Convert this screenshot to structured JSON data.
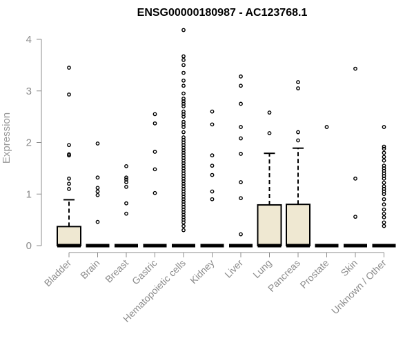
{
  "chart_data": {
    "type": "box",
    "title": "ENSG00000180987 - AC123768.1",
    "xlabel": "",
    "ylabel": "Expression",
    "ylim": [
      0,
      4.2
    ],
    "yticks": [
      "0",
      "1",
      "2",
      "3",
      "4"
    ],
    "box_fill": "#efe8d2",
    "categories": [
      "Bladder",
      "Brain",
      "Breast",
      "Gastric",
      "Hematopoietic cells",
      "Kidney",
      "Liver",
      "Lung",
      "Pancreas",
      "Prostate",
      "Skin",
      "Unknown / Other"
    ],
    "boxes": [
      {
        "category": "Bladder",
        "q1": 0,
        "median": 0,
        "q3": 0.37,
        "whisker_low": 0,
        "whisker_high": 0.89,
        "outliers": [
          1.1,
          1.2,
          1.3,
          1.75,
          1.77,
          1.95,
          2.93,
          3.45
        ]
      },
      {
        "category": "Brain",
        "q1": 0,
        "median": 0,
        "q3": 0,
        "whisker_low": 0,
        "whisker_high": 0,
        "outliers": [
          0.46,
          0.98,
          1.05,
          1.12,
          1.32,
          1.98
        ]
      },
      {
        "category": "Breast",
        "q1": 0,
        "median": 0,
        "q3": 0,
        "whisker_low": 0,
        "whisker_high": 0,
        "outliers": [
          0.62,
          0.82,
          1.14,
          1.23,
          1.28,
          1.32,
          1.54
        ]
      },
      {
        "category": "Gastric",
        "q1": 0,
        "median": 0,
        "q3": 0,
        "whisker_low": 0,
        "whisker_high": 0,
        "outliers": [
          1.02,
          1.48,
          1.82,
          2.37,
          2.55
        ]
      },
      {
        "category": "Hematopoietic cells",
        "q1": 0,
        "median": 0,
        "q3": 0,
        "whisker_low": 0,
        "whisker_high": 0,
        "outliers": [
          0.3,
          0.38,
          0.45,
          0.5,
          0.55,
          0.6,
          0.65,
          0.7,
          0.75,
          0.8,
          0.85,
          0.9,
          0.95,
          1.0,
          1.05,
          1.1,
          1.15,
          1.2,
          1.25,
          1.3,
          1.35,
          1.4,
          1.45,
          1.5,
          1.55,
          1.6,
          1.65,
          1.7,
          1.75,
          1.8,
          1.85,
          1.9,
          1.95,
          2.0,
          2.05,
          2.1,
          2.2,
          2.3,
          2.35,
          2.4,
          2.5,
          2.55,
          2.6,
          2.7,
          2.75,
          2.8,
          2.85,
          2.95,
          3.1,
          3.2,
          3.35,
          3.5,
          3.6,
          3.67,
          4.18
        ]
      },
      {
        "category": "Kidney",
        "q1": 0,
        "median": 0,
        "q3": 0,
        "whisker_low": 0,
        "whisker_high": 0,
        "outliers": [
          0.9,
          1.05,
          1.37,
          1.55,
          1.75,
          2.35,
          2.6
        ]
      },
      {
        "category": "Liver",
        "q1": 0,
        "median": 0,
        "q3": 0,
        "whisker_low": 0,
        "whisker_high": 0,
        "outliers": [
          0.22,
          0.92,
          1.23,
          1.78,
          2.08,
          2.3,
          2.75,
          3.1,
          3.28
        ]
      },
      {
        "category": "Lung",
        "q1": 0,
        "median": 0,
        "q3": 0.79,
        "whisker_low": 0,
        "whisker_high": 1.79,
        "outliers": [
          2.18,
          2.58
        ]
      },
      {
        "category": "Pancreas",
        "q1": 0,
        "median": 0,
        "q3": 0.8,
        "whisker_low": 0,
        "whisker_high": 1.89,
        "outliers": [
          2.04,
          2.2,
          3.05,
          3.17
        ]
      },
      {
        "category": "Prostate",
        "q1": 0,
        "median": 0,
        "q3": 0,
        "whisker_low": 0,
        "whisker_high": 0,
        "outliers": [
          2.3
        ]
      },
      {
        "category": "Skin",
        "q1": 0,
        "median": 0,
        "q3": 0,
        "whisker_low": 0,
        "whisker_high": 0,
        "outliers": [
          0.56,
          1.3,
          3.43
        ]
      },
      {
        "category": "Unknown / Other",
        "q1": 0,
        "median": 0,
        "q3": 0,
        "whisker_low": 0,
        "whisker_high": 0,
        "outliers": [
          0.38,
          0.45,
          0.55,
          0.62,
          0.7,
          0.8,
          0.9,
          1.0,
          1.05,
          1.1,
          1.15,
          1.22,
          1.3,
          1.35,
          1.4,
          1.45,
          1.5,
          1.55,
          1.65,
          1.72,
          1.8,
          1.88,
          1.92,
          2.3
        ]
      }
    ]
  }
}
